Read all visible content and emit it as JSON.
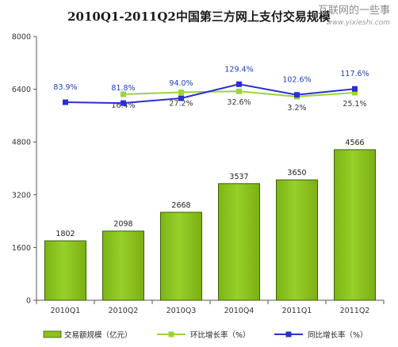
{
  "watermark": {
    "text": "互联网的一些事",
    "url": "www.yixieshi.com"
  },
  "chart_data": {
    "type": "bar",
    "title": "2010Q1-2011Q2中国第三方网上支付交易规模",
    "categories": [
      "2010Q1",
      "2010Q2",
      "2010Q3",
      "2010Q4",
      "2011Q1",
      "2011Q2"
    ],
    "ylim": [
      0,
      8000
    ],
    "yticks": [
      "0",
      "1600",
      "3200",
      "4800",
      "6400",
      "8000"
    ],
    "grid": false,
    "legend_position": "bottom",
    "series": [
      {
        "name": "交易额规模（亿元）",
        "kind": "bar",
        "color": "#8cc21c",
        "values": [
          1802,
          2098,
          2668,
          3537,
          3650,
          4566
        ],
        "labels": [
          "1802",
          "2098",
          "2668",
          "3537",
          "3650",
          "4566"
        ]
      },
      {
        "name": "环比增长率（%）",
        "kind": "line",
        "color": "#9bd43c",
        "values": [
          null,
          16.4,
          27.2,
          32.6,
          3.2,
          25.1
        ],
        "labels": [
          "",
          "16.4%",
          "27.2%",
          "32.6%",
          "3.2%",
          "25.1%"
        ]
      },
      {
        "name": "同比增长率（%）",
        "kind": "line",
        "color": "#2b2fd0",
        "values": [
          83.9,
          81.8,
          94.0,
          129.4,
          102.6,
          117.6
        ],
        "labels": [
          "83.9%",
          "81.8%",
          "94.0%",
          "129.4%",
          "102.6%",
          "117.6%"
        ]
      }
    ]
  }
}
